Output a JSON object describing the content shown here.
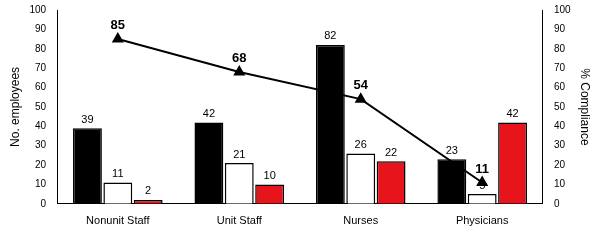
{
  "chart_data": {
    "type": "bar",
    "categories": [
      "Nonunit Staff",
      "Unit Staff",
      "Nurses",
      "Physicians"
    ],
    "series": [
      {
        "color": "#000000",
        "values": [
          39,
          42,
          82,
          23
        ]
      },
      {
        "color": "#ffffff",
        "values": [
          11,
          21,
          26,
          5
        ]
      },
      {
        "color": "#e8141b",
        "values": [
          2,
          10,
          22,
          42
        ]
      },
      {
        "type": "line",
        "axis": "y2",
        "color": "#000000",
        "marker": "triangle",
        "values": [
          85,
          68,
          54,
          11
        ]
      }
    ],
    "ylabel": "No. employees",
    "y2label": "% Compliance",
    "ylim": [
      0,
      100
    ],
    "yticks": [
      0,
      10,
      20,
      30,
      40,
      50,
      60,
      70,
      80,
      90,
      100
    ],
    "y2lim": [
      0,
      100
    ],
    "y2ticks": [
      0,
      10,
      20,
      30,
      40,
      50,
      60,
      70,
      80,
      90,
      100
    ],
    "grid": false,
    "data_labels": true
  }
}
